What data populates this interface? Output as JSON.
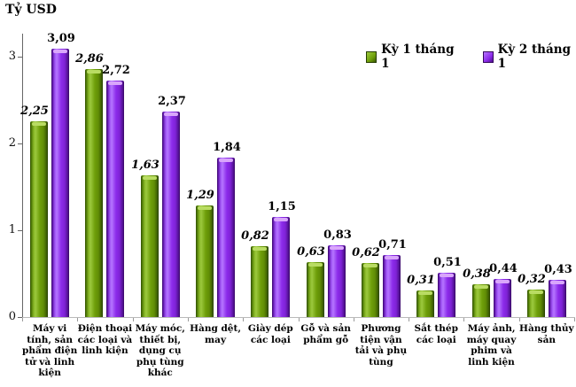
{
  "chart_data": {
    "type": "bar",
    "title": "",
    "ylabel": "Tỷ USD",
    "xlabel": "",
    "grid": false,
    "legend_position": "top-right",
    "ylim": [
      0,
      3.3
    ],
    "yticks": [
      0,
      1,
      2,
      3
    ],
    "ytick_labels": [
      "0",
      "1",
      "2",
      "3"
    ],
    "categories": [
      "Máy vi tính, sản phẩm điện tử và linh kiện",
      "Điện thoại các loại và linh kiện",
      "Máy móc, thiết bị, dụng cụ phụ tùng khác",
      "Hàng dệt, may",
      "Giày dép các loại",
      "Gỗ và sản phẩm gỗ",
      "Phương tiện vận tải và phụ tùng",
      "Sắt thép các loại",
      "Máy ảnh, máy quay phim và linh kiện",
      "Hàng thủy sản"
    ],
    "series": [
      {
        "name": "Kỳ 1 tháng 1",
        "color": "#6F9F0A",
        "values": [
          2.25,
          2.86,
          1.63,
          1.29,
          0.82,
          0.63,
          0.62,
          0.31,
          0.38,
          0.32
        ],
        "display_values": [
          "2,25",
          "2,86",
          "1,63",
          "1,29",
          "0,82",
          "0,63",
          "0,62",
          "0,31",
          "0,38",
          "0,32"
        ]
      },
      {
        "name": "Kỳ 2 tháng 1",
        "color": "#8C2BEA",
        "values": [
          3.09,
          2.72,
          2.37,
          1.84,
          1.15,
          0.83,
          0.71,
          0.51,
          0.44,
          0.43
        ],
        "display_values": [
          "3,09",
          "2,72",
          "2,37",
          "1,84",
          "1,15",
          "0,83",
          "0,71",
          "0,51",
          "0,44",
          "0,43"
        ]
      }
    ]
  }
}
